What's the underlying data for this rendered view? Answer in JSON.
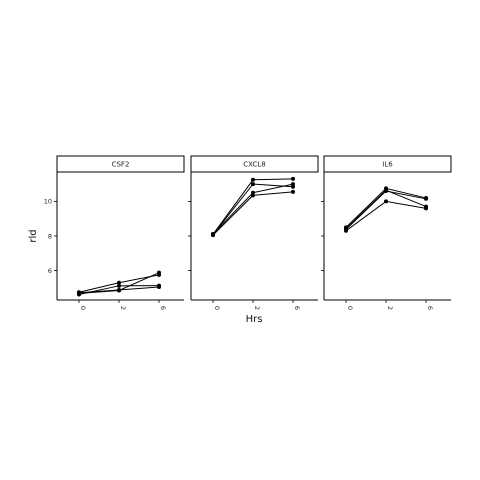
{
  "chart_data": {
    "type": "line",
    "xlabel": "Hrs",
    "ylabel": "rld",
    "x_ticks": [
      "0",
      "2",
      "6"
    ],
    "y_ticks": [
      6,
      8,
      10
    ],
    "ylim": [
      4.3,
      11.7
    ],
    "facets": [
      {
        "name": "CSF2",
        "series": [
          {
            "values": [
              4.72,
              4.88,
              5.05
            ]
          },
          {
            "values": [
              4.62,
              5.12,
              5.13
            ]
          },
          {
            "values": [
              4.75,
              5.3,
              5.75
            ]
          },
          {
            "values": [
              4.68,
              4.85,
              5.88
            ]
          }
        ]
      },
      {
        "name": "CXCL8",
        "series": [
          {
            "values": [
              8.05,
              10.35,
              10.55
            ]
          },
          {
            "values": [
              8.12,
              10.5,
              11.0
            ]
          },
          {
            "values": [
              8.08,
              11.0,
              10.85
            ]
          },
          {
            "values": [
              8.1,
              11.25,
              11.3
            ]
          }
        ]
      },
      {
        "name": "IL6",
        "series": [
          {
            "values": [
              8.3,
              10.0,
              9.6
            ]
          },
          {
            "values": [
              8.38,
              10.6,
              10.15
            ]
          },
          {
            "values": [
              8.5,
              10.75,
              10.2
            ]
          },
          {
            "values": [
              8.42,
              10.65,
              9.7
            ]
          }
        ]
      }
    ]
  }
}
